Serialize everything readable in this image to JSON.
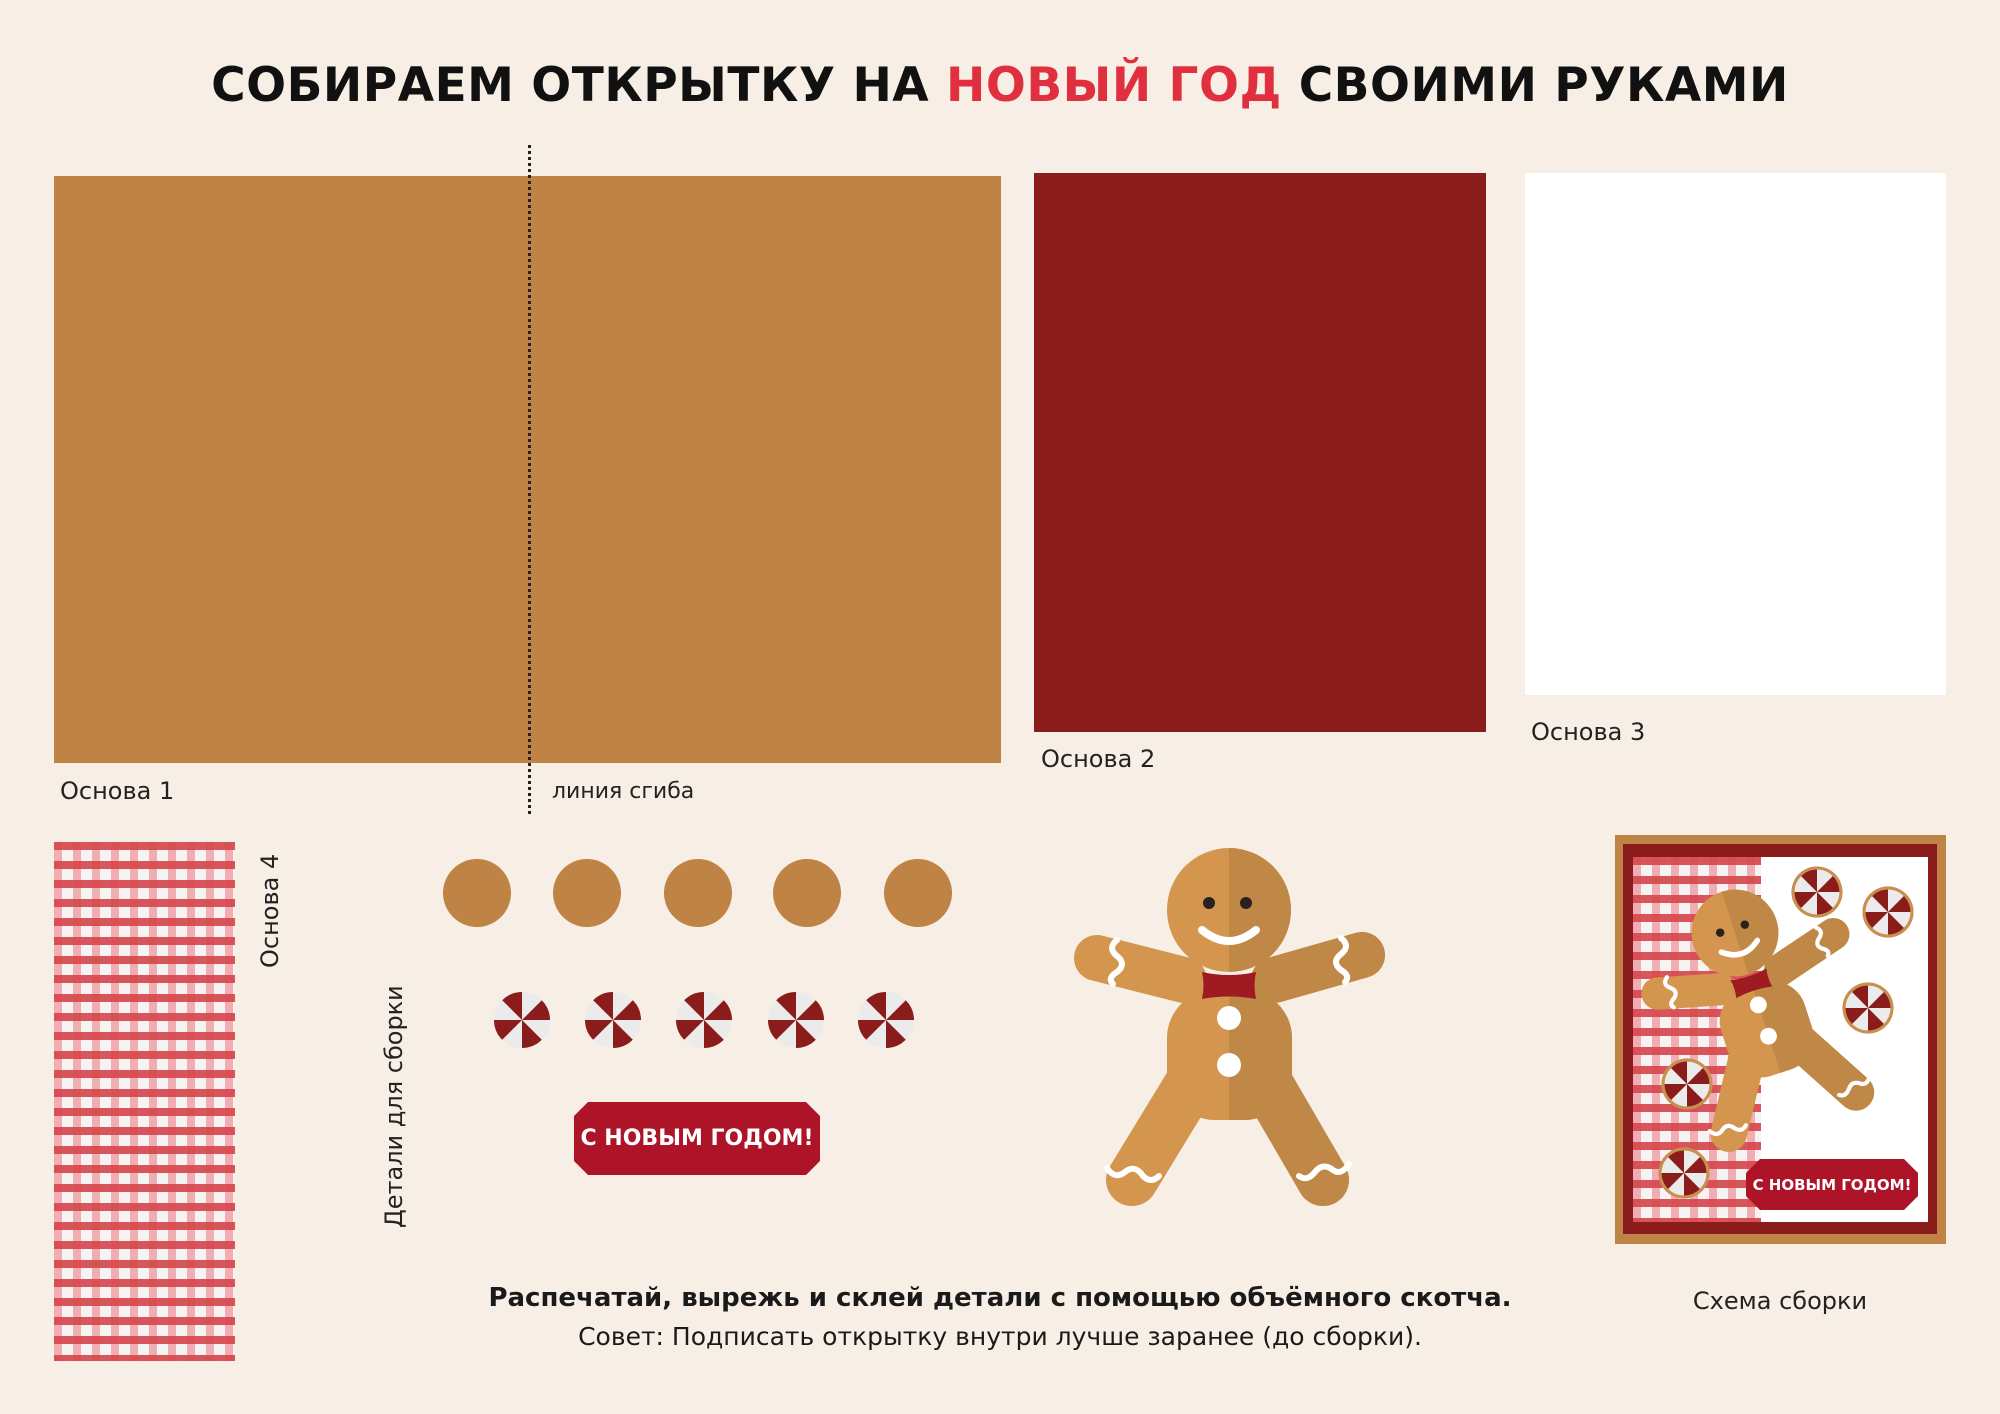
{
  "title": {
    "part1": "СОБИРАЕМ ОТКРЫТКУ НА ",
    "accent": "НОВЫЙ ГОД",
    "part2": " СВОИМИ РУКАМИ"
  },
  "bases": {
    "base1": "Основа 1",
    "fold_line": "линия сгиба",
    "base2": "Основа 2",
    "base3": "Основа 3",
    "base4": "Основа 4"
  },
  "details_label": "Детали для сборки",
  "greeting_tag": "С НОВЫМ ГОДОМ!",
  "schema": {
    "label": "Схема сборки",
    "tag": "С НОВЫМ ГОДОМ!"
  },
  "instructions": {
    "main": "Распечатай, вырежь и склей детали с помощью объёмного скотча.",
    "tip": "Совет: Подписать открытку внутри лучше заранее (до сборки)."
  },
  "colors": {
    "background": "#f7efe5",
    "tan": "#bf8345",
    "dark_red": "#8b1c1c",
    "accent_red": "#e0303f",
    "tag_red": "#ad1428",
    "gingerbread_light": "#d4964e",
    "gingerbread_dark": "#c08846"
  }
}
